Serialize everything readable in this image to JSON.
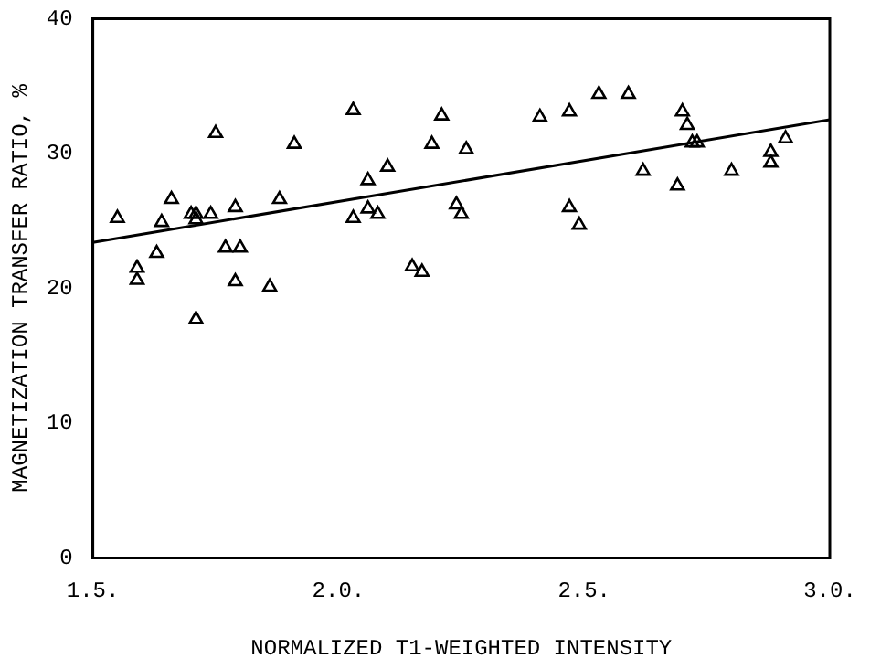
{
  "chart_data": {
    "type": "scatter",
    "xlabel": "NORMALIZED T1-WEIGHTED INTENSITY",
    "ylabel": "MAGNETIZATION TRANSFER RATIO, %",
    "xlim": [
      1.5,
      3.0
    ],
    "ylim": [
      0,
      40
    ],
    "xticks": [
      {
        "value": 1.5,
        "label": "1.5."
      },
      {
        "value": 2.0,
        "label": "2.0."
      },
      {
        "value": 2.5,
        "label": "2.5."
      },
      {
        "value": 3.0,
        "label": "3.0."
      }
    ],
    "yticks": [
      0,
      10,
      20,
      30,
      40
    ],
    "grid": false,
    "legend": false,
    "series": [
      {
        "type": "scatter",
        "color": "#000000",
        "marker": "triangle",
        "x": [
          1.55,
          1.59,
          1.59,
          1.63,
          1.64,
          1.66,
          1.7,
          1.71,
          1.71,
          1.71,
          1.74,
          1.75,
          1.77,
          1.8,
          1.79,
          1.79,
          1.86,
          1.88,
          1.91,
          2.03,
          2.03,
          2.06,
          2.06,
          2.08,
          2.1,
          2.15,
          2.17,
          2.19,
          2.21,
          2.24,
          2.25,
          2.26,
          2.41,
          2.47,
          2.47,
          2.49,
          2.53,
          2.59,
          2.62,
          2.7,
          2.71,
          2.69,
          2.72,
          2.73,
          2.8,
          2.88,
          2.88,
          2.91
        ],
        "values": [
          25.2,
          21.5,
          20.6,
          22.6,
          24.9,
          26.6,
          25.5,
          25.5,
          25.1,
          17.7,
          25.5,
          31.5,
          23.0,
          23.0,
          26.0,
          20.5,
          20.1,
          26.6,
          30.7,
          33.2,
          25.2,
          28.0,
          25.9,
          25.5,
          29.0,
          21.6,
          21.2,
          30.7,
          32.8,
          26.2,
          25.5,
          30.3,
          32.7,
          33.1,
          26.0,
          24.7,
          34.4,
          34.4,
          28.7,
          33.1,
          32.1,
          27.6,
          30.8,
          30.8,
          28.7,
          29.3,
          30.1,
          31.1
        ]
      },
      {
        "type": "line",
        "color": "#000000",
        "marker": "none",
        "line_style": "solid",
        "x": [
          1.5,
          3.0
        ],
        "values": [
          23.4,
          32.5
        ]
      }
    ]
  }
}
